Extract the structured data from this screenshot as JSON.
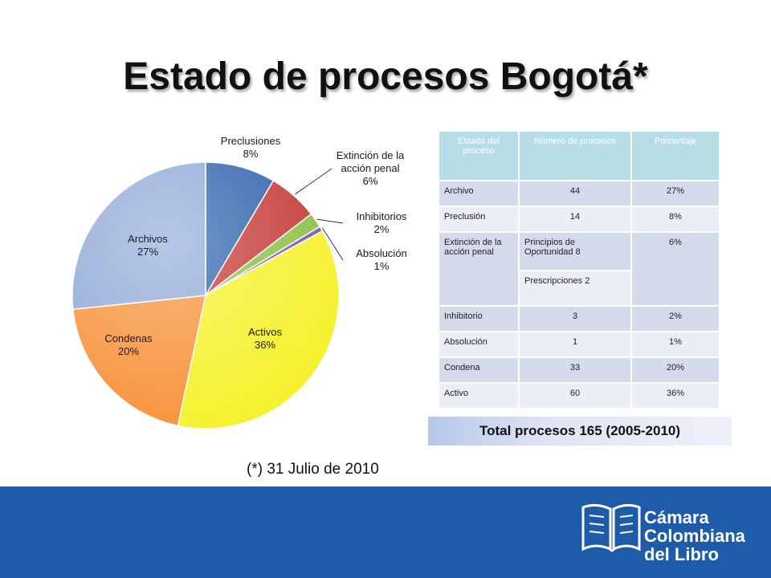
{
  "title": "Estado de procesos Bogotá*",
  "chart_data": {
    "type": "pie",
    "slices": [
      {
        "label": "Preclusiones",
        "pct_label": "8%",
        "value": 14,
        "color": "#2e62ad"
      },
      {
        "label": "Extinción de la acción penal",
        "pct_label": "6%",
        "value": 10,
        "color": "#c43a35"
      },
      {
        "label": "Inhibitorios",
        "pct_label": "2%",
        "value": 3,
        "color": "#8cbf45"
      },
      {
        "label": "Absolución",
        "pct_label": "1%",
        "value": 1,
        "color": "#7b5aa6"
      },
      {
        "label": "Activos",
        "pct_label": "36%",
        "value": 60,
        "color": "#f5f12c"
      },
      {
        "label": "Condenas",
        "pct_label": "20%",
        "value": 33,
        "color": "#f7923a"
      },
      {
        "label": "Archivos",
        "pct_label": "27%",
        "value": 44,
        "color": "#8fa9d8"
      }
    ]
  },
  "table": {
    "headers": [
      "Estado del proceso",
      "Número de procesos",
      "Porcentaje"
    ],
    "rows": {
      "archivo": [
        "Archivo",
        "44",
        "27%"
      ],
      "preclusion": [
        "Preclusión",
        "14",
        "8%"
      ],
      "extincion": {
        "label": "Extinción de la acción penal",
        "sub1": "Principios de Oportunidad     8",
        "sub2": "Prescripciones   2",
        "pct": "6%"
      },
      "inhibitorio": [
        "Inhibitorio",
        "3",
        "2%"
      ],
      "absolucion": [
        "Absolución",
        "1",
        "1%"
      ],
      "condena": [
        "Condena",
        "33",
        "20%"
      ],
      "activo": [
        "Activo",
        "60",
        "36%"
      ]
    }
  },
  "total": "Total procesos 165 (2005-2010)",
  "footnote": "(*) 31 Julio de 2010",
  "logo": {
    "line1": "Cámara",
    "line2": "Colombiana",
    "line3": "del Libro"
  }
}
